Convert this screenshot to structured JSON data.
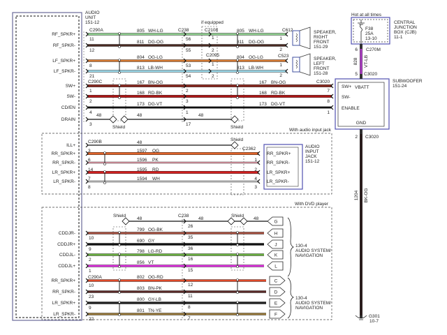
{
  "audio_unit": {
    "label": [
      "AUDIO",
      "UNIT",
      "151-12"
    ]
  },
  "connectors": {
    "c290a": "C290A",
    "c290b": "C290B",
    "c290c": "C290C",
    "c238": "C238",
    "c2108": "C2108",
    "c2095": "C2095",
    "c612": "C612",
    "c523": "C523",
    "c3020": "C3020",
    "c2362": "C2362",
    "c270m": "C270M",
    "g301": "G301",
    "g301_ref": "10-7"
  },
  "notes": {
    "if_equipped": "if equipped",
    "hot": "Hot at all times",
    "audio_jack": "With audio input jack",
    "dvd": "With DVD player",
    "shield": "Shield"
  },
  "cjb": {
    "label": [
      "CENTRAL",
      "JUNCTION",
      "BOX (CJB)",
      "11-1"
    ],
    "fuse": "F38",
    "amps": "25A",
    "ref": "13-10"
  },
  "feed": {
    "circuit": "828",
    "color_code": "VT-LB",
    "pin_top": "6",
    "pin_bottom": "5",
    "color": "#b040c8"
  },
  "ground": {
    "circuit": "1204",
    "color_code": "BK-OG",
    "pin": "2",
    "color": "#2a1a1a"
  },
  "speaker_rf": {
    "label": [
      "SPEAKER,",
      "RIGHT",
      "FRONT",
      "151-29"
    ]
  },
  "speaker_lf": {
    "label": [
      "SPEAKER,",
      "LEFT",
      "FRONT",
      "151-28"
    ]
  },
  "subwoofer": {
    "label": [
      "SUBWOOFER",
      "151-24"
    ],
    "pins": [
      "SW+",
      "SW-",
      "ENABLE"
    ],
    "vbatt": "VBATT",
    "gnd": "GND"
  },
  "jack": {
    "label": [
      "AUDIO",
      "INPUT",
      "JACK",
      "151-12"
    ],
    "pins": [
      "RR_SPKR+",
      "RR_SPKR-",
      "LR_SPKR+",
      "LR_SPKR-"
    ]
  },
  "nav": {
    "label": [
      "130-4",
      "AUDIO SYSTEM/",
      "NAVIGATION"
    ]
  },
  "front_wires": [
    {
      "name": "RF_SPKR+",
      "pin": "11",
      "circuit": "805",
      "color_code": "WH-LG",
      "mid_pin": "56",
      "far_pin": "1",
      "end_pin": "1",
      "color": "#8fd08f"
    },
    {
      "name": "RF_SPKR-",
      "pin": "12",
      "circuit": "811",
      "color_code": "DG-OG",
      "mid_pin": "55",
      "far_pin": "2",
      "end_pin": "2",
      "color": "#4a2a22"
    },
    {
      "name": "LF_SPKR+",
      "pin": "8",
      "circuit": "804",
      "color_code": "OG-LG",
      "mid_pin": "53",
      "far_pin": "1",
      "end_pin": "1",
      "color": "#d67a32"
    },
    {
      "name": "LF_SPKR-",
      "pin": "21",
      "circuit": "813",
      "color_code": "LB-WH",
      "mid_pin": "54",
      "far_pin": "2",
      "end_pin": "2",
      "color": "#9ad8e8"
    }
  ],
  "sub_wires": [
    {
      "name": "SW+",
      "pin": "1",
      "circuit": "167",
      "color_code": "BN-OG",
      "mid_pin": "2",
      "end_pin": "7",
      "color": "#8a2a22"
    },
    {
      "name": "SW-",
      "pin": "2",
      "circuit": "168",
      "color_code": "RD-BK",
      "mid_pin": "3",
      "end_pin": "8",
      "color": "#b01818"
    },
    {
      "name": "CD/EN",
      "pin": "4",
      "circuit": "173",
      "color_code": "DG-VT",
      "mid_pin": "1",
      "end_pin": "1",
      "color": "#111111"
    }
  ],
  "drain": {
    "name": "DRAIN",
    "pin": "3",
    "circuit": "48",
    "mid_pin": "17"
  },
  "jack_wires": [
    {
      "name": "ILL+",
      "pin": "",
      "circuit": "48",
      "color_code": "",
      "end_pin": "",
      "color": "#111111"
    },
    {
      "name": "RR_SPKR+",
      "pin": "3",
      "circuit": "1597",
      "color_code": "OG",
      "end_pin": "",
      "color": "#e0642a"
    },
    {
      "name": "RR_SPKR-",
      "pin": "6",
      "circuit": "1596",
      "color_code": "PK",
      "end_pin": "1",
      "color": "#f0a0b0"
    },
    {
      "name": "LR_SPKR+",
      "pin": "14",
      "circuit": "1595",
      "color_code": "RD",
      "end_pin": "2",
      "color": "#d42020"
    },
    {
      "name": "LR_SPKR-",
      "pin": "7",
      "circuit": "1594",
      "color_code": "WH",
      "end_pin": "4",
      "color": "#cccccc"
    }
  ],
  "jack_extra_pins": {
    "audio_side": "8",
    "jack_side": "3"
  },
  "dvd_wires": [
    {
      "name": "",
      "pin": "",
      "circuit": "48",
      "color_code": "",
      "mid_pin": "26",
      "tag": "G",
      "color": "#111111"
    },
    {
      "name": "CDDJR-",
      "pin": "10",
      "circuit": "799",
      "color_code": "OG-BK",
      "mid_pin": "35",
      "tag": "H",
      "color": "#a85040"
    },
    {
      "name": "CDDJR+",
      "pin": "9",
      "circuit": "690",
      "color_code": "GY",
      "mid_pin": "36",
      "tag": "J",
      "color": "#111111"
    },
    {
      "name": "CDDJL-",
      "pin": "2",
      "circuit": "798",
      "color_code": "LG-RD",
      "mid_pin": "16",
      "tag": "K",
      "color": "#6ab040"
    },
    {
      "name": "CDDJL+",
      "pin": "1",
      "circuit": "856",
      "color_code": "VT",
      "mid_pin": "15",
      "tag": "L",
      "color": "#e030e0"
    },
    {
      "name": "RR_SPKR+",
      "pin": "10",
      "circuit": "802",
      "color_code": "OG-RD",
      "mid_pin": "12",
      "tag": "C",
      "color": "#e04a2a"
    },
    {
      "name": "RR_SPKR-",
      "pin": "23",
      "circuit": "803",
      "color_code": "BN-PK",
      "mid_pin": "11",
      "tag": "D",
      "color": "#5a2a28"
    },
    {
      "name": "LR_SPKR+",
      "pin": "9",
      "circuit": "800",
      "color_code": "GY-LB",
      "mid_pin": "8",
      "tag": "E",
      "color": "#222222"
    },
    {
      "name": "LR_SPKR-",
      "pin": "22",
      "circuit": "801",
      "color_code": "TN-YE",
      "mid_pin": "7",
      "tag": "F",
      "color": "#9a7a3a"
    }
  ]
}
